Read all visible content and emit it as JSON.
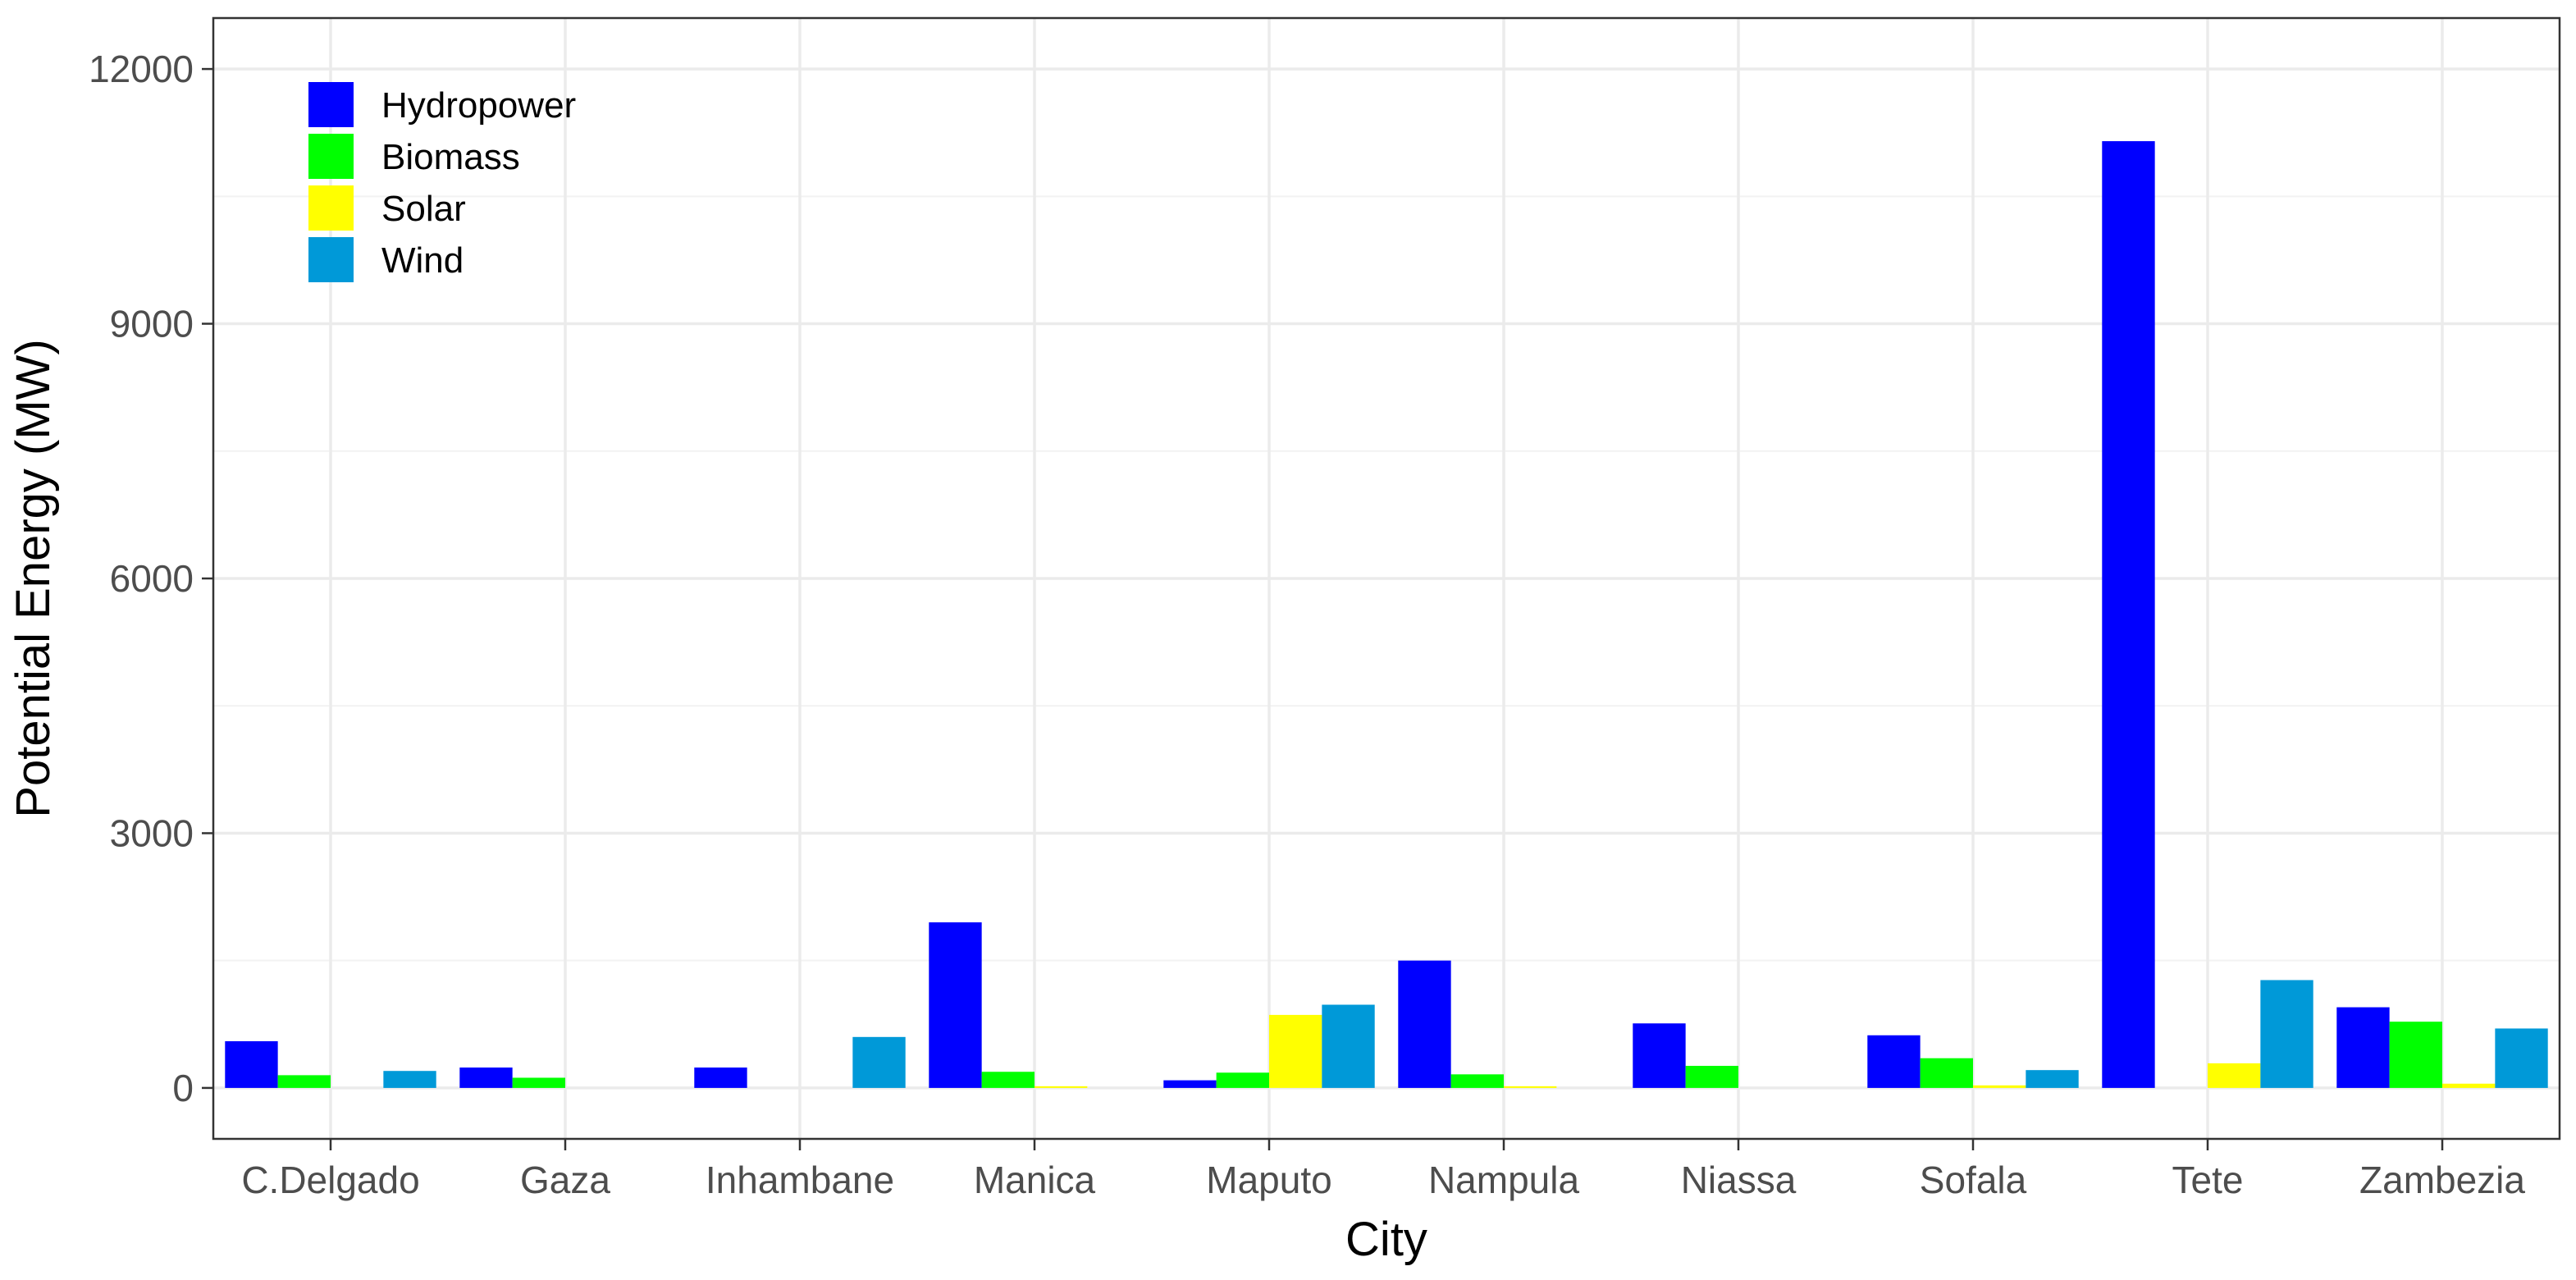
{
  "chart_data": {
    "type": "bar",
    "title": "",
    "xlabel": "City",
    "ylabel": "Potential Energy (MW)",
    "ylim": [
      -600,
      12600
    ],
    "yticks": [
      0,
      3000,
      6000,
      9000,
      12000
    ],
    "categories": [
      "C.Delgado",
      "Gaza",
      "Inhambane",
      "Manica",
      "Maputo",
      "Nampula",
      "Niassa",
      "Sofala",
      "Tete",
      "Zambezia"
    ],
    "series": [
      {
        "name": "Hydropower",
        "color": "#0000FF",
        "values": [
          550,
          240,
          240,
          1950,
          90,
          1500,
          760,
          620,
          11150,
          950
        ]
      },
      {
        "name": "Biomass",
        "color": "#00FF00",
        "values": [
          150,
          120,
          0,
          190,
          180,
          160,
          260,
          350,
          0,
          780
        ]
      },
      {
        "name": "Solar",
        "color": "#FFFF00",
        "values": [
          0,
          0,
          0,
          20,
          860,
          20,
          0,
          30,
          290,
          50
        ]
      },
      {
        "name": "Wind",
        "color": "#0099D8",
        "values": [
          200,
          0,
          600,
          0,
          980,
          0,
          0,
          210,
          1270,
          700
        ]
      }
    ],
    "grid": true,
    "legend_position": "top-left"
  }
}
